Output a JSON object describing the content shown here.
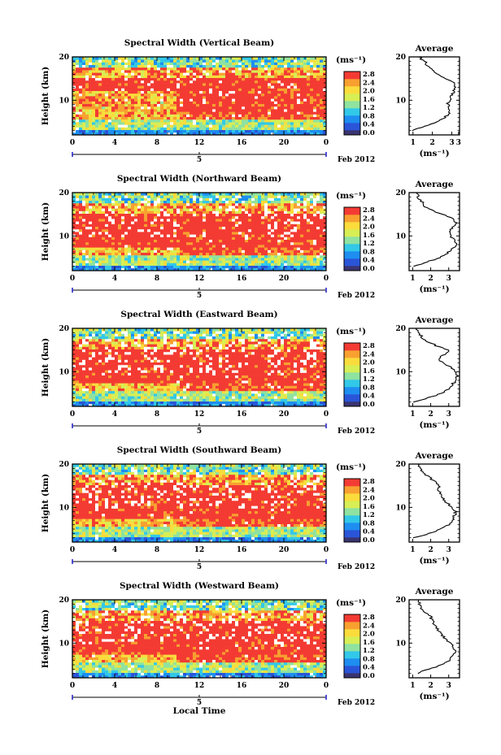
{
  "figure": {
    "xlabel_bottom": "Local Time",
    "date_label": "Feb 2012",
    "day_label": "5",
    "colorbar_unit": "(ms⁻¹)",
    "colorbar_ticks": [
      "2.8",
      "2.4",
      "2.0",
      "1.6",
      "1.2",
      "0.8",
      "0.4",
      "0.0"
    ],
    "colors": [
      "#3a3470",
      "#2a55d8",
      "#1e8ef0",
      "#32c8e8",
      "#8fe2a0",
      "#d8ee55",
      "#fadc3c",
      "#f8a030",
      "#f33b33"
    ]
  },
  "chart_data": [
    {
      "type": "heatmap",
      "title": "Spectral Width (Vertical Beam)",
      "ylabel": "Height (km)",
      "xlim": [
        0,
        24
      ],
      "ylim": [
        2,
        20
      ],
      "xticks": [
        "0",
        "4",
        "8",
        "12",
        "16",
        "20",
        "0"
      ],
      "yticks": [
        "20",
        "10"
      ],
      "colorbar": {
        "label": "(ms⁻¹)",
        "range": [
          0,
          3.0
        ]
      },
      "profile": {
        "title": "Average",
        "xlabel": "(ms⁻¹)",
        "xticks": [
          "1",
          "2",
          "3",
          "3"
        ],
        "xlim": [
          0.8,
          3.4
        ],
        "height": [
          3,
          4,
          5,
          6,
          7,
          8,
          9,
          10,
          11,
          12,
          13,
          14,
          15,
          16,
          17,
          18,
          19,
          20
        ],
        "value": [
          1.0,
          1.6,
          2.2,
          2.6,
          2.9,
          2.9,
          2.8,
          2.9,
          3.0,
          3.1,
          3.2,
          3.1,
          2.7,
          2.3,
          2.0,
          1.7,
          1.6,
          1.3
        ]
      }
    },
    {
      "type": "heatmap",
      "title": "Spectral Width (Northward Beam)",
      "ylabel": "Height (km)",
      "xlim": [
        0,
        24
      ],
      "ylim": [
        2,
        20
      ],
      "xticks": [
        "0",
        "4",
        "8",
        "12",
        "16",
        "20",
        "0"
      ],
      "yticks": [
        "20",
        "10"
      ],
      "colorbar": {
        "label": "(ms⁻¹)",
        "range": [
          0,
          3.0
        ]
      },
      "profile": {
        "title": "Average",
        "xlabel": "(ms⁻¹)",
        "xticks": [
          "1",
          "2",
          "3"
        ],
        "xlim": [
          0.8,
          3.6
        ],
        "height": [
          3,
          4,
          5,
          6,
          7,
          8,
          9,
          10,
          11,
          12,
          13,
          14,
          15,
          16,
          17,
          18,
          19,
          20
        ],
        "value": [
          1.1,
          1.8,
          2.5,
          2.9,
          3.2,
          3.4,
          3.3,
          3.1,
          3.0,
          3.2,
          3.4,
          3.3,
          2.6,
          2.0,
          1.6,
          1.5,
          1.3,
          1.2
        ]
      }
    },
    {
      "type": "heatmap",
      "title": "Spectral Width (Eastward Beam)",
      "ylabel": "Height (km)",
      "xlim": [
        0,
        24
      ],
      "ylim": [
        2,
        20
      ],
      "xticks": [
        "0",
        "4",
        "8",
        "12",
        "16",
        "20",
        "0"
      ],
      "yticks": [
        "20",
        "10"
      ],
      "colorbar": {
        "label": "(ms⁻¹)",
        "range": [
          0,
          3.0
        ]
      },
      "profile": {
        "title": "Average",
        "xlabel": "(ms⁻¹)",
        "xticks": [
          "1",
          "2",
          "3"
        ],
        "xlim": [
          0.8,
          3.6
        ],
        "height": [
          3,
          4,
          5,
          6,
          7,
          8,
          9,
          10,
          11,
          12,
          13,
          14,
          15,
          16,
          17,
          18,
          19,
          20
        ],
        "value": [
          1.1,
          1.9,
          2.6,
          3.0,
          3.2,
          3.4,
          3.5,
          3.4,
          3.1,
          2.7,
          2.4,
          2.8,
          3.0,
          2.3,
          1.8,
          1.5,
          1.3,
          1.2
        ]
      }
    },
    {
      "type": "heatmap",
      "title": "Spectral Width (Southward Beam)",
      "ylabel": "Height (km)",
      "xlim": [
        0,
        24
      ],
      "ylim": [
        2,
        20
      ],
      "xticks": [
        "0",
        "4",
        "8",
        "12",
        "16",
        "20",
        "0"
      ],
      "yticks": [
        "20",
        "10"
      ],
      "colorbar": {
        "label": "(ms⁻¹)",
        "range": [
          0,
          3.0
        ]
      },
      "profile": {
        "title": "Average",
        "xlabel": "(ms⁻¹)",
        "xticks": [
          "1",
          "2",
          "3"
        ],
        "xlim": [
          0.8,
          3.6
        ],
        "height": [
          3,
          4,
          5,
          6,
          7,
          8,
          9,
          10,
          11,
          12,
          13,
          14,
          15,
          16,
          17,
          18,
          19,
          20
        ],
        "value": [
          1.1,
          1.9,
          2.6,
          3.0,
          3.2,
          3.3,
          3.4,
          3.2,
          2.9,
          2.7,
          2.6,
          2.4,
          2.5,
          2.2,
          1.9,
          1.6,
          1.4,
          1.3
        ]
      }
    },
    {
      "type": "heatmap",
      "title": "Spectral Width (Westward Beam)",
      "ylabel": "Height (km)",
      "xlim": [
        0,
        24
      ],
      "ylim": [
        2,
        20
      ],
      "xticks": [
        "0",
        "4",
        "8",
        "12",
        "16",
        "20",
        "0"
      ],
      "yticks": [
        "20",
        "10"
      ],
      "colorbar": {
        "label": "(ms⁻¹)",
        "range": [
          0,
          3.0
        ]
      },
      "profile": {
        "title": "Average",
        "xlabel": "(ms⁻¹)",
        "xticks": [
          "1",
          "2",
          "3"
        ],
        "xlim": [
          0.8,
          3.6
        ],
        "height": [
          3,
          4,
          5,
          6,
          7,
          8,
          9,
          10,
          11,
          12,
          13,
          14,
          15,
          16,
          17,
          18,
          19,
          20
        ],
        "value": [
          1.2,
          1.9,
          2.6,
          3.0,
          3.2,
          3.4,
          3.3,
          3.1,
          2.8,
          2.6,
          2.4,
          2.3,
          2.1,
          2.0,
          1.7,
          1.5,
          1.4,
          1.3
        ]
      }
    }
  ]
}
